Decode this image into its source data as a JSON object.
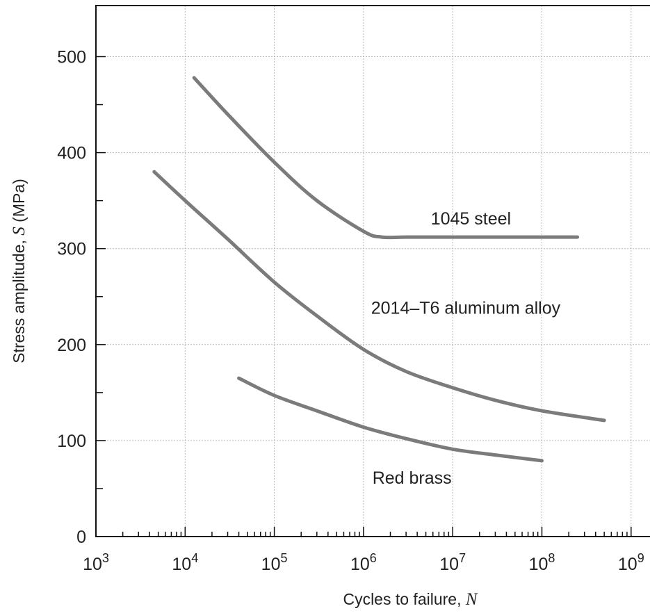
{
  "chart_data": {
    "type": "line",
    "xlabel": "Cycles to failure, ",
    "xlabel_var": "N",
    "ylabel": "Stress amplitude, ",
    "ylabel_var": "S",
    "ylabel_unit": " (MPa)",
    "x_scale": "log",
    "xlim": [
      1000,
      1000000000
    ],
    "ylim": [
      0,
      500
    ],
    "x_ticks": [
      {
        "value": 1000,
        "base": "10",
        "exp": "3"
      },
      {
        "value": 10000,
        "base": "10",
        "exp": "4"
      },
      {
        "value": 100000,
        "base": "10",
        "exp": "5"
      },
      {
        "value": 1000000,
        "base": "10",
        "exp": "6"
      },
      {
        "value": 10000000,
        "base": "10",
        "exp": "7"
      },
      {
        "value": 100000000,
        "base": "10",
        "exp": "8"
      },
      {
        "value": 1000000000,
        "base": "10",
        "exp": "9"
      }
    ],
    "y_ticks": [
      {
        "value": 0,
        "label": "0"
      },
      {
        "value": 100,
        "label": "100"
      },
      {
        "value": 200,
        "label": "200"
      },
      {
        "value": 300,
        "label": "300"
      },
      {
        "value": 400,
        "label": "400"
      },
      {
        "value": 500,
        "label": "500"
      }
    ],
    "y_minor_ticks": [
      50,
      150,
      250,
      350,
      450
    ],
    "grid": true,
    "series": [
      {
        "name": "1045 steel",
        "color": "#7b7b7b",
        "points": [
          [
            12600,
            478
          ],
          [
            30000,
            440
          ],
          [
            100000,
            390
          ],
          [
            300000,
            350
          ],
          [
            1000000,
            318
          ],
          [
            1600000,
            312
          ],
          [
            3000000,
            312
          ],
          [
            10000000,
            312
          ],
          [
            100000000,
            312
          ],
          [
            250000000,
            312
          ]
        ]
      },
      {
        "name": "2014–T6 aluminum alloy",
        "color": "#7b7b7b",
        "points": [
          [
            4500,
            380
          ],
          [
            10000,
            350
          ],
          [
            30000,
            310
          ],
          [
            100000,
            265
          ],
          [
            300000,
            230
          ],
          [
            1000000,
            195
          ],
          [
            3000000,
            172
          ],
          [
            10000000,
            155
          ],
          [
            30000000,
            142
          ],
          [
            100000000,
            131
          ],
          [
            500000000,
            121
          ]
        ]
      },
      {
        "name": "Red brass",
        "color": "#7b7b7b",
        "points": [
          [
            40000,
            165
          ],
          [
            100000,
            147
          ],
          [
            300000,
            131
          ],
          [
            1000000,
            114
          ],
          [
            3000000,
            102
          ],
          [
            10000000,
            91
          ],
          [
            30000000,
            85
          ],
          [
            100000000,
            79
          ]
        ]
      }
    ],
    "annotations": [
      {
        "series": "1045 steel",
        "x": 16000000,
        "y": 325
      },
      {
        "series": "2014–T6 aluminum alloy",
        "x": 14000000,
        "y": 232
      },
      {
        "series": "Red brass",
        "x": 3500000,
        "y": 55
      }
    ]
  }
}
